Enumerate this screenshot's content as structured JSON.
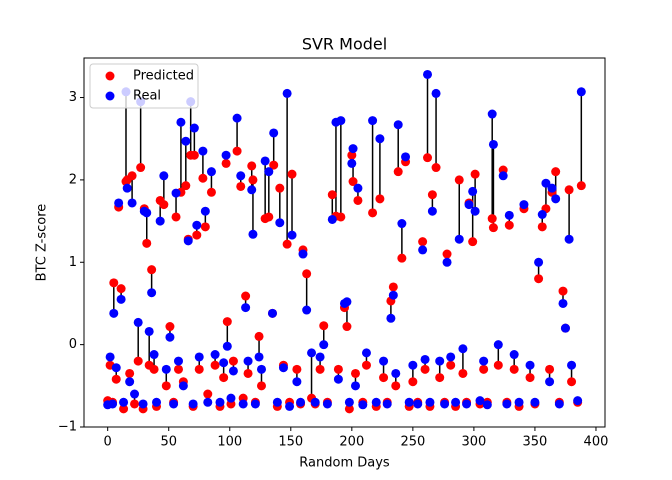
{
  "chart_data": {
    "type": "scatter",
    "title": "SVR Model",
    "x_label": "Random Days",
    "y_label": "BTC Z-score",
    "xlim": [
      -19.4,
      407.4
    ],
    "ylim": [
      -1.0,
      3.48
    ],
    "xticks": [
      0,
      50,
      100,
      150,
      200,
      250,
      300,
      350,
      400
    ],
    "yticks": [
      {
        "value": -1,
        "label": "−1"
      },
      0,
      1,
      2,
      3
    ],
    "legend": "upper left",
    "connector_color": "#000000",
    "x": [
      0,
      2,
      4,
      5,
      7,
      9,
      11,
      13,
      15,
      16,
      18,
      20,
      22,
      25,
      27,
      29,
      30,
      32,
      34,
      36,
      38,
      40,
      43,
      46,
      48,
      51,
      54,
      56,
      58,
      60,
      62,
      64,
      66,
      68,
      70,
      71,
      73,
      75,
      78,
      80,
      82,
      85,
      88,
      92,
      95,
      97,
      98,
      101,
      103,
      106,
      109,
      111,
      113,
      115,
      118,
      119,
      121,
      124,
      126,
      129,
      132,
      135,
      136,
      139,
      141,
      144,
      147,
      149,
      151,
      155,
      158,
      160,
      163,
      167,
      170,
      174,
      177,
      180,
      184,
      187,
      189,
      191,
      194,
      196,
      198,
      200,
      201,
      203,
      205,
      209,
      212,
      217,
      220,
      223,
      226,
      229,
      232,
      234,
      236,
      238,
      241,
      244,
      247,
      250,
      254,
      258,
      260,
      262,
      264,
      266,
      269,
      272,
      276,
      278,
      281,
      285,
      288,
      291,
      294,
      296,
      299,
      301,
      305,
      308,
      311,
      315,
      316,
      320,
      324,
      327,
      329,
      333,
      337,
      341,
      346,
      350,
      353,
      356,
      359,
      362,
      364,
      367,
      370,
      373,
      375,
      378,
      380,
      385,
      388
    ],
    "series": [
      {
        "name": "Predicted",
        "color": "#ff0000",
        "values": [
          -0.68,
          -0.25,
          -0.7,
          0.75,
          -0.42,
          1.67,
          0.68,
          -0.78,
          1.98,
          2.0,
          -0.35,
          2.05,
          -0.72,
          -0.2,
          2.15,
          -0.78,
          1.65,
          1.23,
          -0.25,
          0.91,
          -0.3,
          -0.75,
          1.75,
          1.7,
          -0.5,
          0.22,
          -0.7,
          1.55,
          -0.3,
          1.85,
          -0.45,
          1.93,
          1.28,
          2.3,
          -0.75,
          2.3,
          1.33,
          -0.3,
          2.02,
          1.43,
          -0.6,
          1.85,
          -0.25,
          -0.75,
          -0.4,
          2.2,
          0.28,
          -0.72,
          -0.2,
          2.35,
          1.92,
          -0.65,
          0.59,
          -0.35,
          2.17,
          2.0,
          -0.7,
          0.1,
          -0.5,
          1.53,
          1.55,
          0.38,
          2.18,
          -0.75,
          1.9,
          -0.25,
          1.22,
          -0.7,
          2.07,
          -0.3,
          -0.72,
          1.15,
          0.86,
          -0.65,
          -0.72,
          -0.3,
          0.23,
          -0.7,
          1.82,
          1.56,
          -0.3,
          1.55,
          0.45,
          0.22,
          -0.78,
          2.3,
          1.98,
          -0.35,
          1.75,
          -0.7,
          -0.25,
          1.6,
          -0.75,
          1.77,
          -0.4,
          -0.7,
          0.53,
          0.7,
          -0.5,
          2.1,
          1.05,
          2.22,
          -0.75,
          -0.45,
          -0.7,
          1.25,
          -0.3,
          2.27,
          -0.75,
          1.82,
          2.15,
          -0.4,
          -0.7,
          1.1,
          -0.25,
          -0.75,
          2.0,
          -0.35,
          -0.7,
          1.72,
          1.25,
          2.07,
          -0.72,
          -0.3,
          -0.7,
          1.53,
          1.42,
          -0.25,
          2.12,
          -0.7,
          1.45,
          -0.3,
          -0.75,
          1.65,
          -0.4,
          -0.72,
          0.8,
          1.43,
          1.65,
          -0.3,
          1.85,
          2.1,
          -0.7,
          0.65,
          0.2,
          1.88,
          -0.45,
          -0.7,
          1.93
        ]
      },
      {
        "name": "Real",
        "color": "#0000ff",
        "values": [
          -0.73,
          -0.15,
          -0.72,
          0.38,
          -0.28,
          1.72,
          0.55,
          -0.7,
          3.07,
          1.9,
          -0.45,
          1.72,
          -0.6,
          0.27,
          2.95,
          -0.72,
          1.62,
          1.6,
          0.16,
          0.63,
          -0.12,
          -0.7,
          1.5,
          2.05,
          -0.3,
          0.09,
          -0.72,
          1.84,
          -0.2,
          2.7,
          -0.5,
          2.47,
          1.26,
          2.95,
          -0.72,
          2.63,
          1.45,
          -0.15,
          2.35,
          1.62,
          -0.7,
          2.1,
          -0.12,
          -0.7,
          -0.22,
          2.3,
          -0.02,
          -0.65,
          -0.32,
          2.75,
          2.05,
          -0.72,
          0.45,
          -0.2,
          1.88,
          1.34,
          -0.72,
          -0.15,
          -0.3,
          2.23,
          2.1,
          0.38,
          2.57,
          -0.7,
          1.48,
          -0.28,
          3.05,
          -0.75,
          1.33,
          -0.45,
          -0.7,
          1.1,
          0.42,
          -0.1,
          -0.7,
          -0.15,
          0.0,
          -0.72,
          1.52,
          2.7,
          -0.42,
          2.72,
          0.5,
          0.52,
          -0.7,
          2.2,
          2.38,
          -0.5,
          1.9,
          -0.73,
          -0.1,
          2.72,
          -0.7,
          2.5,
          -0.2,
          -0.72,
          0.32,
          0.6,
          -0.35,
          2.67,
          1.47,
          2.28,
          -0.7,
          -0.25,
          -0.72,
          1.15,
          -0.18,
          3.28,
          -0.7,
          1.62,
          3.05,
          -0.2,
          -0.72,
          1.0,
          -0.15,
          -0.7,
          1.28,
          -0.05,
          -0.72,
          1.7,
          1.86,
          1.62,
          -0.68,
          -0.2,
          -0.73,
          2.8,
          2.43,
          0.0,
          2.05,
          -0.72,
          1.57,
          -0.12,
          -0.7,
          1.7,
          -0.25,
          -0.7,
          1.0,
          1.58,
          1.96,
          -0.45,
          1.9,
          1.77,
          -0.72,
          0.5,
          0.2,
          1.28,
          -0.25,
          -0.68,
          3.07
        ]
      }
    ]
  }
}
